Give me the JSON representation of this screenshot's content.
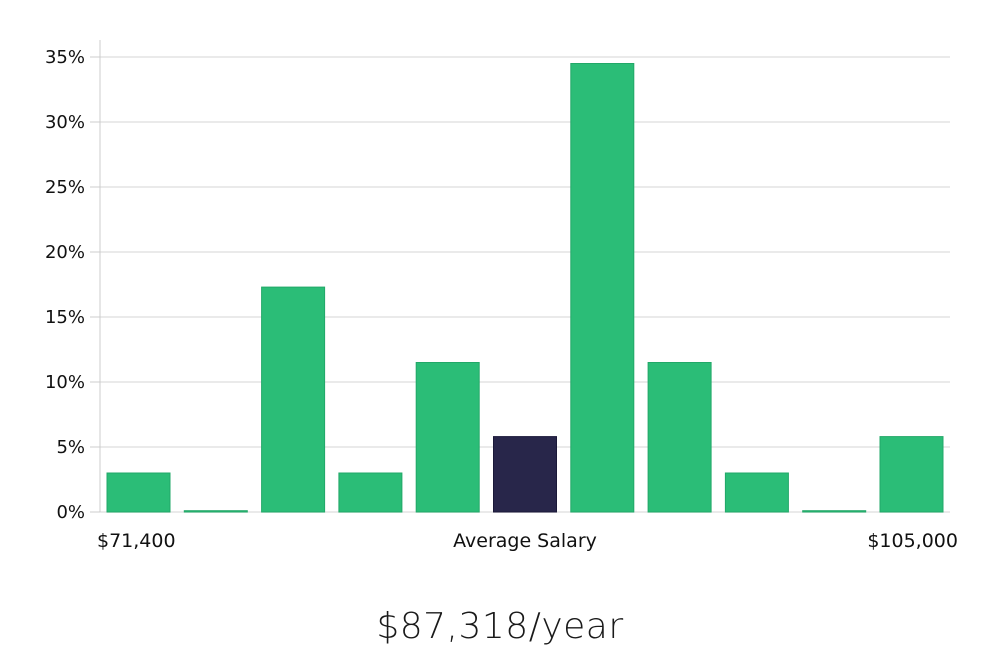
{
  "chart_data": {
    "type": "bar",
    "categories": [
      "1",
      "2",
      "3",
      "4",
      "5",
      "6",
      "7",
      "8",
      "9",
      "10",
      "11"
    ],
    "values": [
      3.0,
      0.1,
      17.3,
      3.0,
      11.5,
      5.8,
      34.5,
      11.5,
      3.0,
      0.1,
      5.8
    ],
    "highlight_index": 5,
    "ylim": [
      0,
      35
    ],
    "yticks": [
      0,
      5,
      10,
      15,
      20,
      25,
      30,
      35
    ],
    "ytick_labels": [
      "0%",
      "5%",
      "10%",
      "15%",
      "20%",
      "25%",
      "30%",
      "35%"
    ],
    "grid": true,
    "x_left_label": "$71,400",
    "x_center_label": "Average Salary",
    "x_right_label": "$105,000",
    "colors": {
      "bar": "#2bbd77",
      "highlight": "#28264a",
      "grid": "#e3e3e3",
      "axis": "#cccccc"
    }
  },
  "summary": {
    "salary": "$87,318/year"
  }
}
